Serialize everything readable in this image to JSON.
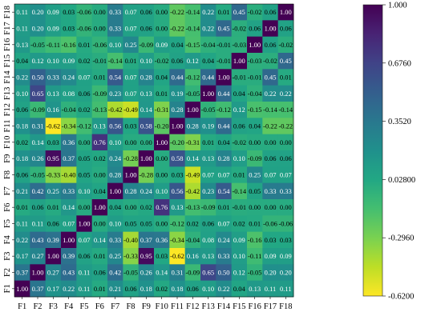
{
  "chart_data": {
    "type": "heatmap",
    "title": "",
    "xlabel": "",
    "ylabel": "",
    "x_categories": [
      "F1",
      "F2",
      "F3",
      "F4",
      "F5",
      "F6",
      "F7",
      "F8",
      "F9",
      "F10",
      "F11",
      "F12",
      "F13",
      "F14",
      "F15",
      "F16",
      "F17",
      "F18"
    ],
    "y_categories_top_to_bottom": [
      "F18",
      "F17",
      "F16",
      "F15",
      "F14",
      "F13",
      "F12",
      "F11",
      "F10",
      "F9",
      "F8",
      "F7",
      "F6",
      "F5",
      "F4",
      "F3",
      "F2",
      "F1"
    ],
    "cell_labels_top_to_bottom": [
      [
        "0.11",
        "0.20",
        "0.09",
        "0.03",
        "-0.06",
        "0.00",
        "0.33",
        "0.07",
        "0.06",
        "0.00",
        "-0.22",
        "-0.14",
        "0.22",
        "0.01",
        "0.45",
        "-0.02",
        "0.06",
        "1.00"
      ],
      [
        "0.11",
        "0.20",
        "0.09",
        "0.03",
        "-0.06",
        "0.00",
        "0.33",
        "0.07",
        "0.06",
        "0.00",
        "-0.22",
        "-0.14",
        "0.22",
        "0.45",
        "-0.02",
        "0.06",
        "1.00",
        "0.06"
      ],
      [
        "0.13",
        "-0.05",
        "-0.11",
        "-0.16",
        "0.01",
        "-0.06",
        "0.10",
        "0.25",
        "-0.09",
        "0.09",
        "0.04",
        "-0.15",
        "-0.04",
        "-0.01",
        "-0.03",
        "1.00",
        "0.06",
        "-0.02"
      ],
      [
        "0.04",
        "0.12",
        "0.10",
        "0.09",
        "0.02",
        "-0.01",
        "-0.14",
        "0.01",
        "0.10",
        "-0.02",
        "0.06",
        "0.12",
        "0.04",
        "-0.01",
        "1.00",
        "-0.03",
        "-0.02",
        "0.45"
      ],
      [
        "0.22",
        "0.50",
        "0.33",
        "0.24",
        "0.07",
        "0.01",
        "0.54",
        "0.07",
        "0.28",
        "0.04",
        "0.44",
        "-0.12",
        "0.44",
        "1.00",
        "-0.01",
        "-0.01",
        "0.45",
        "0.01"
      ],
      [
        "0.10",
        "0.65",
        "0.13",
        "0.08",
        "0.06",
        "-0.09",
        "0.23",
        "0.07",
        "0.13",
        "0.01",
        "0.19",
        "-0.05",
        "1.00",
        "0.44",
        "0.04",
        "-0.04",
        "0.22",
        "0.22"
      ],
      [
        "0.06",
        "-0.09",
        "0.16",
        "-0.04",
        "0.02",
        "-0.13",
        "-0.42",
        "-0.49",
        "0.14",
        "-0.31",
        "0.28",
        "1.00",
        "-0.05",
        "-0.12",
        "0.12",
        "-0.15",
        "-0.14",
        "-0.14"
      ],
      [
        "0.18",
        "0.31",
        "-0.62",
        "-0.34",
        "-0.12",
        "0.13",
        "0.56",
        "0.03",
        "0.58",
        "-0.20",
        "1.00",
        "0.28",
        "0.19",
        "0.44",
        "0.06",
        "0.04",
        "-0.22",
        "-0.22"
      ],
      [
        "0.02",
        "0.14",
        "0.03",
        "0.36",
        "0.00",
        "0.76",
        "0.10",
        "0.00",
        "0.00",
        "1.00",
        "-0.20",
        "-0.31",
        "0.01",
        "0.04",
        "-0.02",
        "0.00",
        "0.00",
        "0.00"
      ],
      [
        "0.18",
        "0.26",
        "0.95",
        "0.37",
        "0.05",
        "0.02",
        "0.24",
        "-0.28",
        "1.00",
        "0.00",
        "0.58",
        "0.14",
        "0.13",
        "0.28",
        "0.10",
        "-0.09",
        "0.06",
        "0.06"
      ],
      [
        "0.06",
        "-0.05",
        "-0.33",
        "-0.40",
        "0.05",
        "0.00",
        "0.28",
        "1.00",
        "-0.28",
        "0.00",
        "0.03",
        "-0.49",
        "0.07",
        "0.07",
        "0.01",
        "0.25",
        "0.07",
        "0.07"
      ],
      [
        "0.21",
        "0.42",
        "0.25",
        "0.33",
        "0.10",
        "0.04",
        "1.00",
        "0.28",
        "0.24",
        "0.10",
        "0.56",
        "-0.42",
        "0.23",
        "0.54",
        "-0.14",
        "0.05",
        "0.33",
        "0.33"
      ],
      [
        "0.01",
        "0.06",
        "0.01",
        "0.14",
        "0.00",
        "1.00",
        "0.04",
        "0.00",
        "0.02",
        "0.76",
        "0.13",
        "-0.13",
        "-0.09",
        "0.01",
        "-0.01",
        "0.00",
        "0.00",
        "0.00"
      ],
      [
        "0.11",
        "0.11",
        "0.06",
        "0.07",
        "1.00",
        "0.00",
        "0.10",
        "0.05",
        "0.05",
        "0.00",
        "-0.12",
        "0.02",
        "0.06",
        "0.07",
        "0.02",
        "0.01",
        "-0.06",
        "-0.06"
      ],
      [
        "0.22",
        "0.43",
        "0.39",
        "1.00",
        "0.07",
        "0.14",
        "0.33",
        "-0.40",
        "0.37",
        "0.36",
        "-0.34",
        "-0.04",
        "0.08",
        "0.24",
        "0.09",
        "-0.16",
        "0.03",
        "0.03"
      ],
      [
        "0.17",
        "0.27",
        "1.00",
        "0.39",
        "0.06",
        "0.01",
        "0.25",
        "-0.33",
        "0.95",
        "0.03",
        "-0.62",
        "0.16",
        "0.13",
        "0.33",
        "0.10",
        "-0.11",
        "0.09",
        "0.09"
      ],
      [
        "0.37",
        "1.00",
        "0.27",
        "0.43",
        "0.11",
        "0.06",
        "0.42",
        "-0.05",
        "0.26",
        "0.14",
        "0.31",
        "-0.09",
        "0.65",
        "0.50",
        "0.12",
        "-0.05",
        "0.20",
        "0.20"
      ],
      [
        "1.00",
        "0.37",
        "0.17",
        "0.22",
        "0.11",
        "0.01",
        "0.21",
        "0.06",
        "0.18",
        "0.02",
        "0.18",
        "0.06",
        "0.10",
        "0.22",
        "0.04",
        "0.13",
        "0.11",
        "0.11"
      ]
    ],
    "colorbar": {
      "min": -0.62,
      "max": 1.0,
      "tick_labels": [
        "1.000",
        "0.6760",
        "0.3520",
        "0.02800",
        "-0.2960",
        "-0.6200"
      ],
      "tick_values": [
        1.0,
        0.676,
        0.352,
        0.028,
        -0.296,
        -0.62
      ],
      "colormap": "viridis_r"
    },
    "grid": false
  }
}
